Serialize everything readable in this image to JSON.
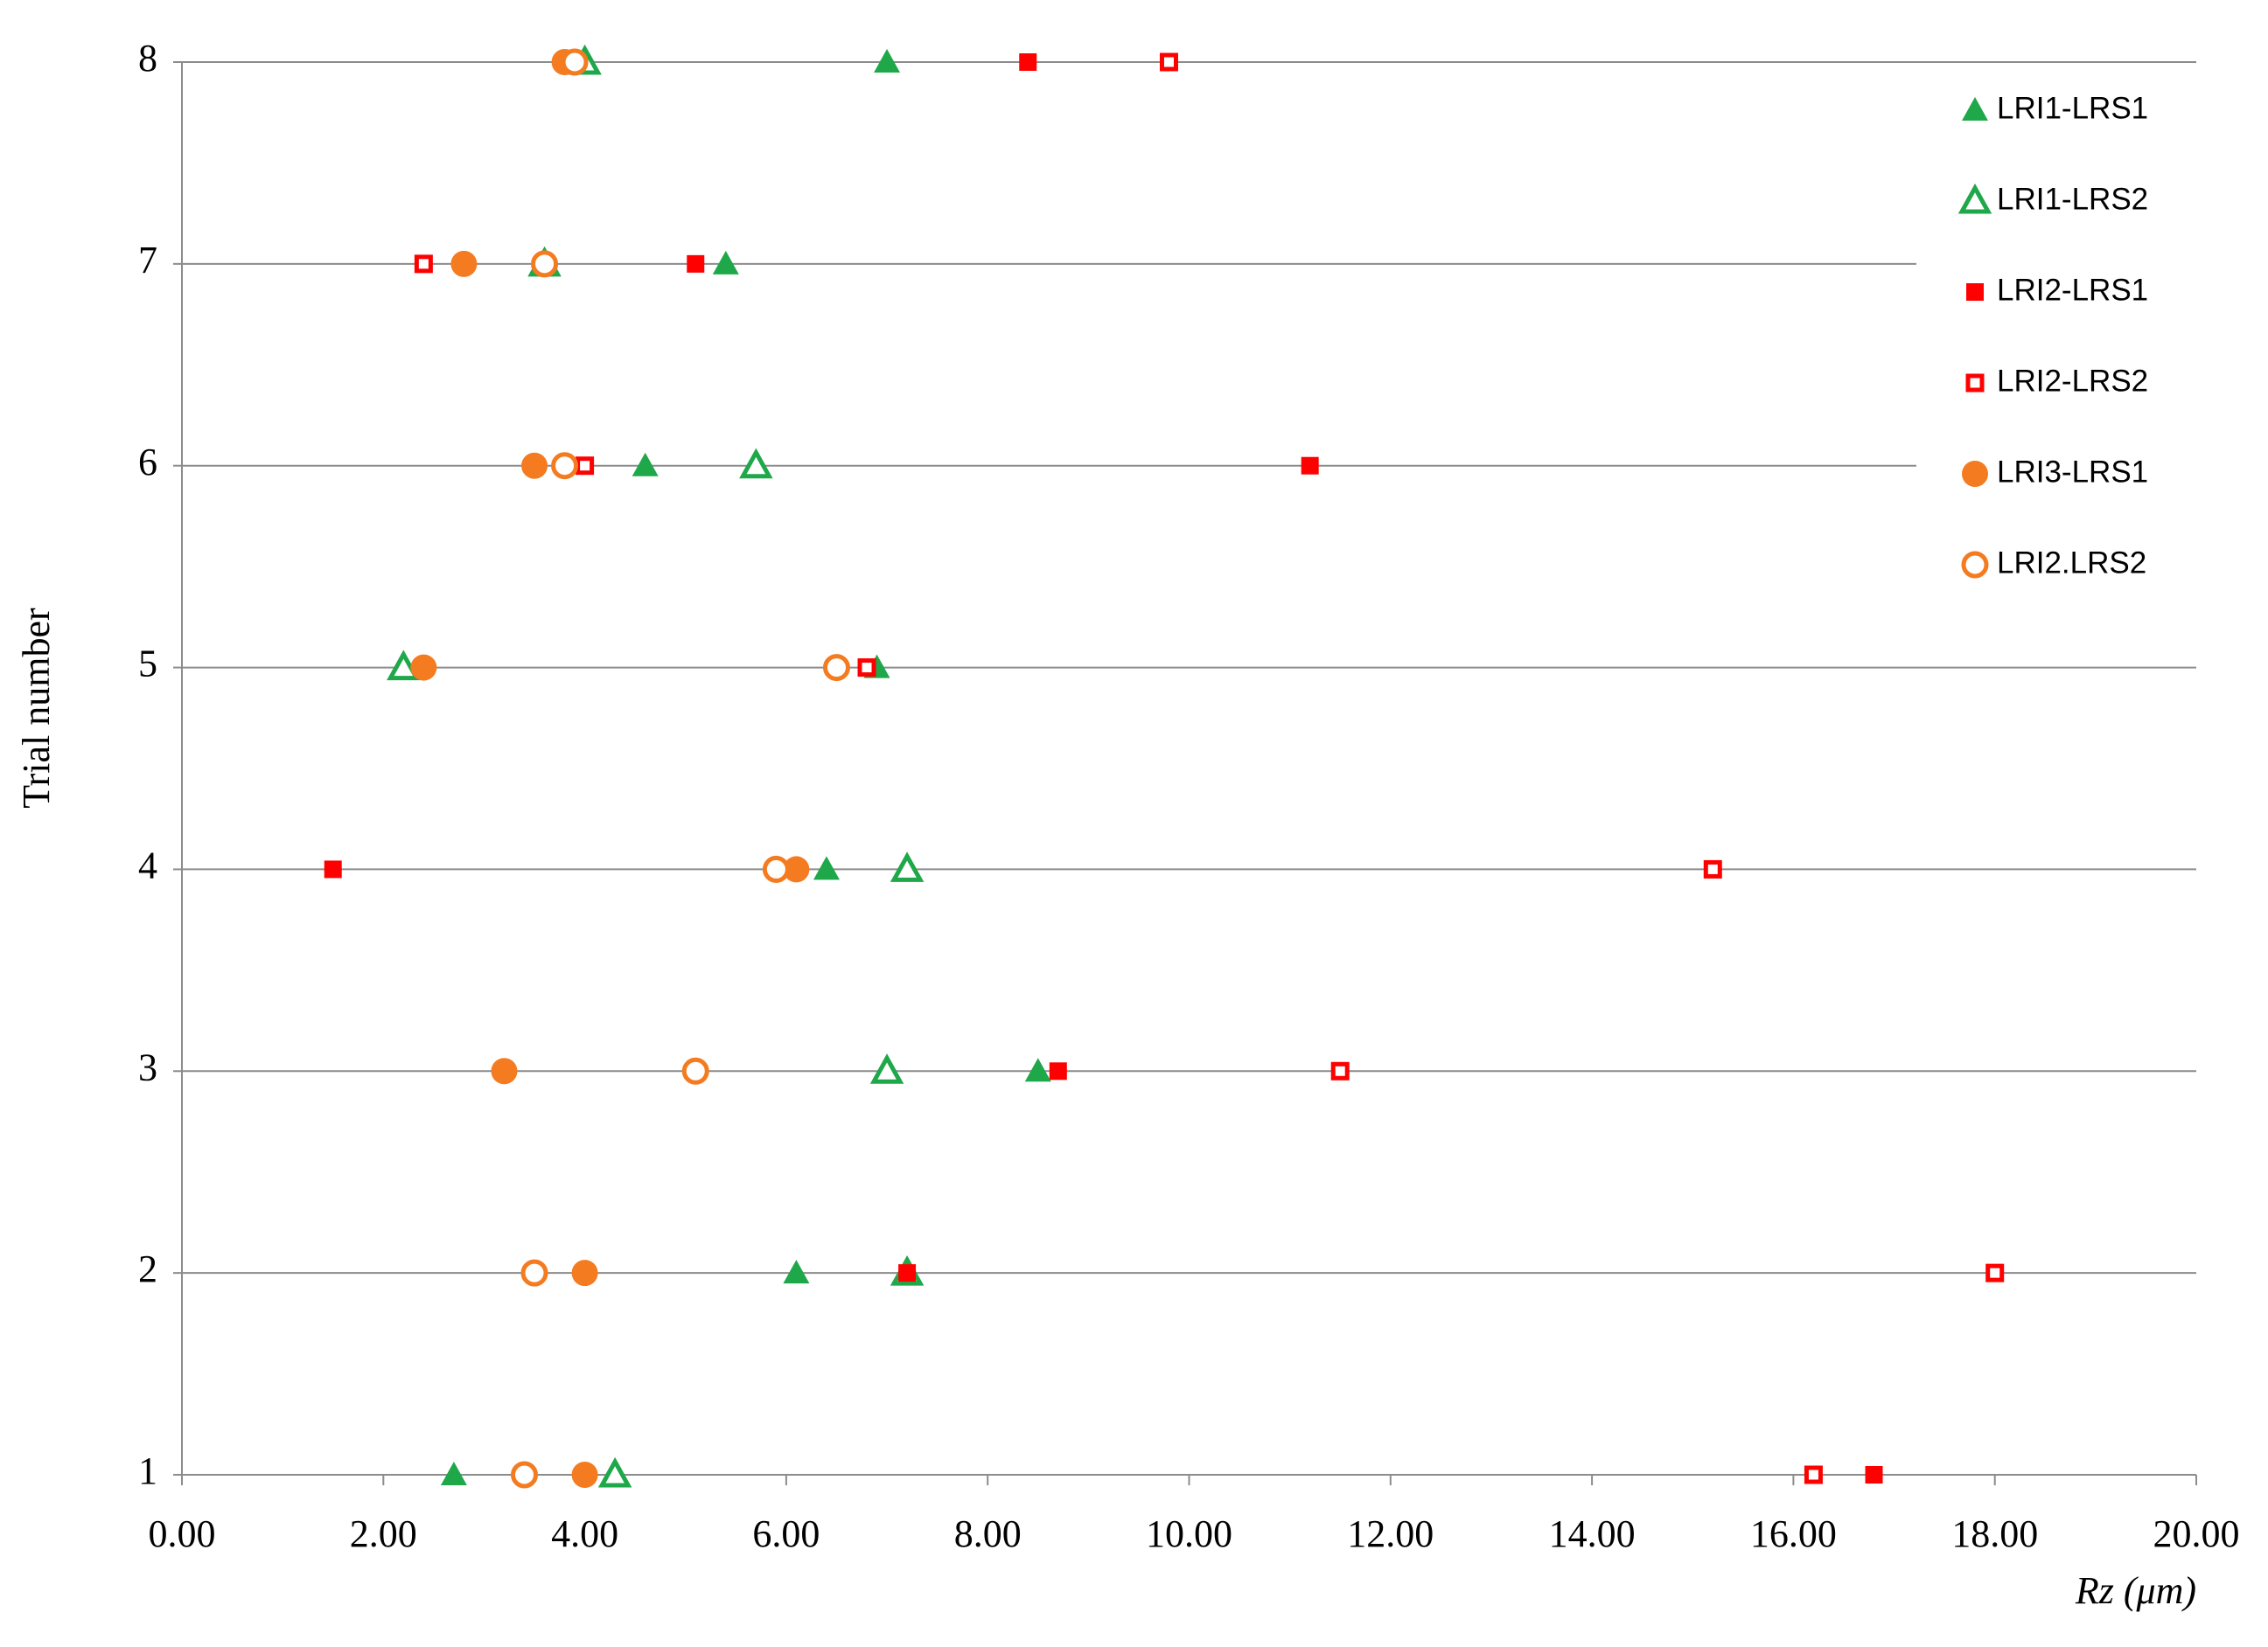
{
  "chart_data": {
    "type": "scatter",
    "xlabel": "Rz (μm)",
    "ylabel": "Trial number",
    "xlim": [
      0,
      20
    ],
    "ylim": [
      1,
      8
    ],
    "xticks": [
      {
        "value": 0,
        "label": "0.00"
      },
      {
        "value": 2,
        "label": "2.00"
      },
      {
        "value": 4,
        "label": "4.00"
      },
      {
        "value": 6,
        "label": "6.00"
      },
      {
        "value": 8,
        "label": "8.00"
      },
      {
        "value": 10,
        "label": "10.00"
      },
      {
        "value": 12,
        "label": "12.00"
      },
      {
        "value": 14,
        "label": "14.00"
      },
      {
        "value": 16,
        "label": "16.00"
      },
      {
        "value": 18,
        "label": "18.00"
      },
      {
        "value": 20,
        "label": "20.00"
      }
    ],
    "yticks": [
      1,
      2,
      3,
      4,
      5,
      6,
      7,
      8
    ],
    "grid": true,
    "legend": "upper right",
    "series": [
      {
        "name": "LRI1-LRS1",
        "color": "#1fa84a",
        "marker": "triangle",
        "filled": true,
        "x": [
          2.7,
          6.1,
          8.5,
          6.4,
          6.9,
          4.6,
          5.4,
          7.0
        ],
        "y": [
          1,
          2,
          3,
          4,
          5,
          6,
          7,
          8
        ]
      },
      {
        "name": "LRI1-LRS2",
        "color": "#1fa84a",
        "marker": "triangle",
        "filled": false,
        "x": [
          4.3,
          7.2,
          7.0,
          7.2,
          2.2,
          5.7,
          3.6,
          4.0
        ],
        "y": [
          1,
          2,
          3,
          4,
          5,
          6,
          7,
          8
        ]
      },
      {
        "name": "LRI2-LRS1",
        "color": "#ff0000",
        "marker": "square",
        "filled": true,
        "x": [
          16.8,
          7.2,
          8.7,
          1.5,
          6.8,
          11.2,
          5.1,
          8.4
        ],
        "y": [
          1,
          2,
          3,
          4,
          5,
          6,
          7,
          8
        ]
      },
      {
        "name": "LRI2-LRS2",
        "color": "#ff0000",
        "marker": "square",
        "filled": false,
        "x": [
          16.2,
          18.0,
          11.5,
          15.2,
          6.8,
          4.0,
          2.4,
          9.8
        ],
        "y": [
          1,
          2,
          3,
          4,
          5,
          6,
          7,
          8
        ]
      },
      {
        "name": "LRI3-LRS1",
        "color": "#f47b20",
        "marker": "circle",
        "filled": true,
        "x": [
          4.0,
          4.0,
          3.2,
          6.1,
          2.4,
          3.5,
          2.8,
          3.8
        ],
        "y": [
          1,
          2,
          3,
          4,
          5,
          6,
          7,
          8
        ]
      },
      {
        "name": "LRI2.LRS2",
        "color": "#f47b20",
        "marker": "circle",
        "filled": false,
        "x": [
          3.4,
          3.5,
          5.1,
          5.9,
          6.5,
          3.8,
          3.6,
          3.9
        ],
        "y": [
          1,
          2,
          3,
          4,
          5,
          6,
          7,
          8
        ]
      }
    ]
  }
}
